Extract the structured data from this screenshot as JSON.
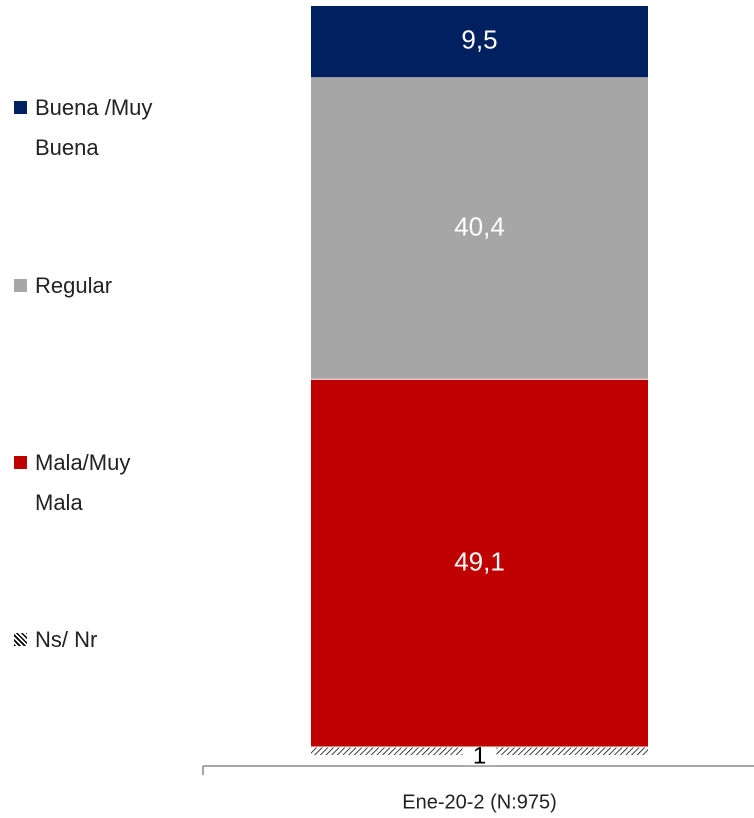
{
  "chart_data": {
    "type": "stacked-bar",
    "categories": [
      "Ene-20-2 (N:975)"
    ],
    "series": [
      {
        "name": "Ns/ Nr",
        "color": "#000000",
        "pattern": "hatch",
        "values": [
          1
        ]
      },
      {
        "name": "Mala/Muy Mala",
        "color": "#c00000",
        "values": [
          49.1
        ],
        "value_labels": [
          "49,1"
        ]
      },
      {
        "name": "Regular",
        "color": "#a6a6a6",
        "values": [
          40.4
        ],
        "value_labels": [
          "40,4"
        ]
      },
      {
        "name": "Buena /Muy Buena",
        "color": "#002060",
        "values": [
          9.5
        ],
        "value_labels": [
          "9,5"
        ]
      }
    ],
    "ylim": [
      0,
      100
    ],
    "legend": "left"
  }
}
